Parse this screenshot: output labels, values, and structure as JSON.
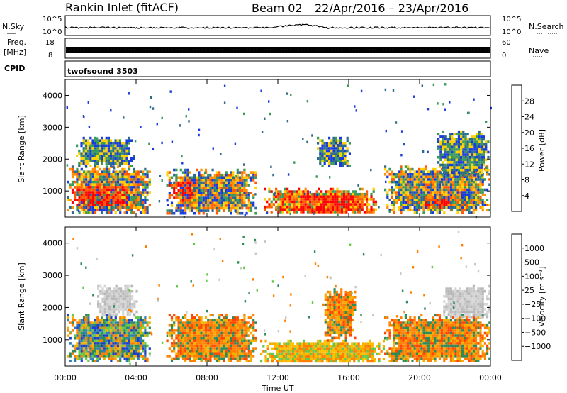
{
  "header": {
    "title": "Rankin Inlet (fitACF)",
    "beam": "Beam 02",
    "dates": "22/Apr/2016 – 23/Apr/2016"
  },
  "strips": {
    "nsky": {
      "left_label": "N.Sky",
      "right_label": "N.Search",
      "left_ticks": [
        "10^5",
        "10^0"
      ],
      "right_ticks": [
        "10^5",
        "10^0"
      ]
    },
    "freq": {
      "left_label_1": "Freq.",
      "left_label_2": "[MHz]",
      "right_label": "Nave",
      "left_ticks": [
        "18",
        "8"
      ],
      "right_ticks": [
        "60",
        "0"
      ]
    },
    "cpid": {
      "label": "CPID",
      "program": "twofsound 3503"
    }
  },
  "axes": {
    "xlabel": "Time UT",
    "ylabel": "Slant Range [km]",
    "x_ticks": [
      "00:00",
      "04:00",
      "08:00",
      "12:00",
      "16:00",
      "20:00",
      "00:00"
    ],
    "y_ticks": [
      "1000",
      "2000",
      "3000",
      "4000"
    ]
  },
  "chart_data": [
    {
      "type": "heatmap",
      "panel": "power",
      "xlabel": "Time UT",
      "ylabel": "Slant Range [km]",
      "xlim": [
        0,
        24
      ],
      "ylim": [
        180,
        4500
      ],
      "colorbar": {
        "label": "Power [dB]",
        "ticks": [
          "28",
          "24",
          "20",
          "16",
          "12",
          "8",
          "4"
        ],
        "colors": [
          "#ff0000",
          "#ff5a00",
          "#ff9100",
          "#ffd000",
          "#3a9a5a",
          "#2e6a8a",
          "#1a3cdc",
          "#0000ff"
        ]
      },
      "regions": [
        {
          "t": [
            0.1,
            4.8
          ],
          "r": [
            300,
            1800
          ],
          "v": "mixed",
          "peak": [
            0.3,
            3.5,
            550,
            1200
          ]
        },
        {
          "t": [
            0.6,
            3.8
          ],
          "r": [
            1800,
            2700
          ],
          "v": "low"
        },
        {
          "t": [
            5.7,
            10.8
          ],
          "r": [
            300,
            1700
          ],
          "v": "mixed",
          "peak": [
            5.8,
            7.2,
            700,
            1300
          ]
        },
        {
          "t": [
            11.2,
            17.6
          ],
          "r": [
            300,
            1100
          ],
          "v": "high",
          "peak": [
            13.2,
            17.0,
            350,
            900
          ]
        },
        {
          "t": [
            14.2,
            16.0
          ],
          "r": [
            1800,
            2700
          ],
          "v": "low"
        },
        {
          "t": [
            18.0,
            23.9
          ],
          "r": [
            300,
            1800
          ],
          "v": "mixed",
          "peak": [
            20.3,
            21.7,
            450,
            800
          ]
        },
        {
          "t": [
            21.0,
            23.9
          ],
          "r": [
            1500,
            2900
          ],
          "v": "low"
        }
      ]
    },
    {
      "type": "heatmap",
      "panel": "velocity",
      "xlabel": "Time UT",
      "ylabel": "Slant Range [km]",
      "xlim": [
        0,
        24
      ],
      "ylim": [
        180,
        4500
      ],
      "colorbar": {
        "label": "Velocity [m s⁻¹]",
        "ticks": [
          "1000",
          "500",
          "100",
          "25",
          "−25",
          "−100",
          "−500",
          "−1000"
        ],
        "colors": [
          "#1f3fc7",
          "#2f7fb0",
          "#2e8b57",
          "#66c84a",
          "#c8c8c8",
          "#f2b000",
          "#ff8000",
          "#ff4500",
          "#ff0000"
        ]
      },
      "regions": [
        {
          "t": [
            0.1,
            4.8
          ],
          "r": [
            300,
            1800
          ],
          "v": "mixed"
        },
        {
          "t": [
            1.8,
            4.0
          ],
          "r": [
            1800,
            2700
          ],
          "v": "grey"
        },
        {
          "t": [
            5.7,
            10.8
          ],
          "r": [
            300,
            1800
          ],
          "v": "orange"
        },
        {
          "t": [
            11.0,
            18.0
          ],
          "r": [
            300,
            1000
          ],
          "v": "yellow-orange"
        },
        {
          "t": [
            14.5,
            16.3
          ],
          "r": [
            1000,
            2600
          ],
          "v": "orange"
        },
        {
          "t": [
            18.0,
            23.9
          ],
          "r": [
            300,
            1800
          ],
          "v": "orange"
        },
        {
          "t": [
            21.2,
            23.9
          ],
          "r": [
            1700,
            2700
          ],
          "v": "grey"
        }
      ]
    }
  ]
}
